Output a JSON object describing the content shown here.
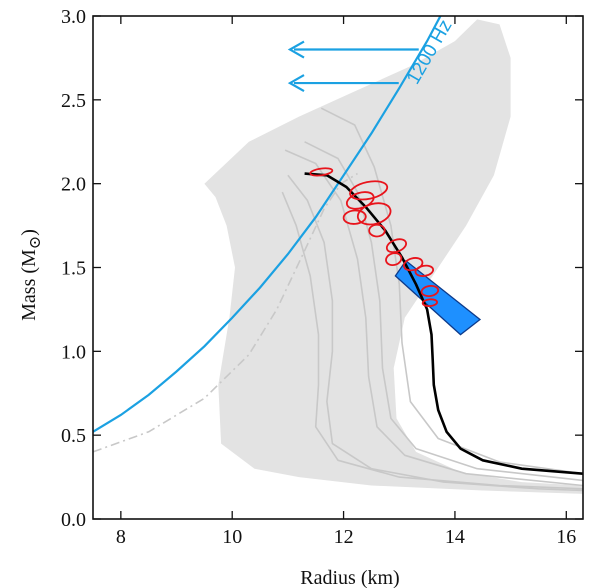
{
  "chart_data": {
    "type": "line",
    "xlabel": "Radius (km)",
    "ylabel": "Mass (M",
    "ylabel_symbol": "⊙",
    "ylabel_close": ")",
    "xlim": [
      7.5,
      16.3
    ],
    "ylim": [
      0.0,
      3.0
    ],
    "xticks": [
      8,
      10,
      12,
      14,
      16
    ],
    "xtick_labels": [
      "8",
      "10",
      "12",
      "14",
      "16"
    ],
    "yticks": [
      0.0,
      0.5,
      1.0,
      1.5,
      2.0,
      2.5,
      3.0
    ],
    "ytick_labels": [
      "0.0",
      "0.5",
      "1.0",
      "1.5",
      "2.0",
      "2.5",
      "3.0"
    ],
    "grid": false,
    "colors": {
      "spin_limit": "#1ba1e2",
      "constraint_band": "#1e90ff",
      "contours": "#e8141c",
      "eos": "#000000",
      "gray_band": "#e3e3e3",
      "gray_curves": "#c8c8c8"
    },
    "annotation": {
      "text": "1200 Hz",
      "arrows_y": [
        2.8,
        2.6
      ]
    },
    "gray_band": {
      "points": [
        [
          9.5,
          2.0
        ],
        [
          10.3,
          2.25
        ],
        [
          11.2,
          2.4
        ],
        [
          12.2,
          2.55
        ],
        [
          13.2,
          2.7
        ],
        [
          14.0,
          2.85
        ],
        [
          14.4,
          2.98
        ],
        [
          14.8,
          2.95
        ],
        [
          15.0,
          2.75
        ],
        [
          15.0,
          2.4
        ],
        [
          14.7,
          2.05
        ],
        [
          14.2,
          1.75
        ],
        [
          13.6,
          1.45
        ],
        [
          13.1,
          1.2
        ],
        [
          12.9,
          0.9
        ],
        [
          12.95,
          0.6
        ],
        [
          13.3,
          0.4
        ],
        [
          14.1,
          0.28
        ],
        [
          15.2,
          0.22
        ],
        [
          16.3,
          0.2
        ],
        [
          16.3,
          0.15
        ],
        [
          14.5,
          0.17
        ],
        [
          12.5,
          0.2
        ],
        [
          11.2,
          0.25
        ],
        [
          10.4,
          0.3
        ],
        [
          9.8,
          0.45
        ],
        [
          9.75,
          0.8
        ],
        [
          9.95,
          1.2
        ],
        [
          10.05,
          1.5
        ],
        [
          9.9,
          1.75
        ],
        [
          9.7,
          1.92
        ]
      ]
    },
    "spin_limit_curve": [
      [
        7.5,
        0.52
      ],
      [
        8.0,
        0.62
      ],
      [
        8.5,
        0.74
      ],
      [
        9.0,
        0.88
      ],
      [
        9.5,
        1.03
      ],
      [
        10.0,
        1.2
      ],
      [
        10.5,
        1.38
      ],
      [
        11.0,
        1.58
      ],
      [
        11.5,
        1.8
      ],
      [
        12.0,
        2.05
      ],
      [
        12.5,
        2.3
      ],
      [
        13.0,
        2.57
      ],
      [
        13.5,
        2.85
      ],
      [
        13.82,
        3.05
      ]
    ],
    "gray_dashdot_curve": [
      [
        7.5,
        0.4
      ],
      [
        8.5,
        0.52
      ],
      [
        9.5,
        0.72
      ],
      [
        10.3,
        0.98
      ],
      [
        10.8,
        1.25
      ],
      [
        11.3,
        1.6
      ],
      [
        11.65,
        1.85
      ],
      [
        11.95,
        2.0
      ],
      [
        12.25,
        2.06
      ]
    ],
    "gray_curves": [
      [
        [
          11.0,
          2.05
        ],
        [
          11.35,
          1.9
        ],
        [
          11.65,
          1.65
        ],
        [
          11.8,
          1.3
        ],
        [
          11.8,
          1.0
        ],
        [
          11.7,
          0.7
        ],
        [
          11.8,
          0.45
        ],
        [
          12.5,
          0.3
        ],
        [
          13.8,
          0.22
        ],
        [
          15.5,
          0.18
        ],
        [
          16.3,
          0.17
        ]
      ],
      [
        [
          10.95,
          2.2
        ],
        [
          11.5,
          2.12
        ],
        [
          11.95,
          1.9
        ],
        [
          12.25,
          1.55
        ],
        [
          12.4,
          1.2
        ],
        [
          12.45,
          0.85
        ],
        [
          12.6,
          0.55
        ],
        [
          13.1,
          0.38
        ],
        [
          14.2,
          0.27
        ],
        [
          16.3,
          0.2
        ]
      ],
      [
        [
          11.3,
          2.25
        ],
        [
          11.9,
          2.15
        ],
        [
          12.25,
          1.95
        ],
        [
          12.5,
          1.65
        ],
        [
          12.65,
          1.3
        ],
        [
          12.7,
          0.9
        ],
        [
          12.85,
          0.6
        ],
        [
          13.3,
          0.42
        ],
        [
          14.4,
          0.3
        ],
        [
          16.3,
          0.23
        ]
      ],
      [
        [
          11.6,
          2.45
        ],
        [
          12.2,
          2.35
        ],
        [
          12.55,
          2.1
        ],
        [
          12.85,
          1.75
        ],
        [
          13.0,
          1.4
        ],
        [
          13.05,
          1.05
        ],
        [
          13.2,
          0.7
        ],
        [
          13.7,
          0.48
        ],
        [
          14.8,
          0.34
        ],
        [
          16.3,
          0.27
        ]
      ],
      [
        [
          10.9,
          1.95
        ],
        [
          11.15,
          1.75
        ],
        [
          11.4,
          1.45
        ],
        [
          11.55,
          1.1
        ],
        [
          11.55,
          0.8
        ],
        [
          11.5,
          0.55
        ],
        [
          11.9,
          0.35
        ],
        [
          13.0,
          0.25
        ],
        [
          14.8,
          0.2
        ],
        [
          16.3,
          0.18
        ]
      ]
    ],
    "eos_curve": [
      [
        11.3,
        2.06
      ],
      [
        11.7,
        2.05
      ],
      [
        12.05,
        1.98
      ],
      [
        12.4,
        1.86
      ],
      [
        12.75,
        1.72
      ],
      [
        13.05,
        1.56
      ],
      [
        13.3,
        1.4
      ],
      [
        13.5,
        1.25
      ],
      [
        13.58,
        1.1
      ],
      [
        13.6,
        0.95
      ],
      [
        13.62,
        0.8
      ],
      [
        13.7,
        0.65
      ],
      [
        13.85,
        0.52
      ],
      [
        14.1,
        0.42
      ],
      [
        14.5,
        0.35
      ],
      [
        15.2,
        0.3
      ],
      [
        16.3,
        0.27
      ]
    ],
    "constraint_band": {
      "corners": [
        [
          12.93,
          1.45
        ],
        [
          13.12,
          1.54
        ],
        [
          14.45,
          1.19
        ],
        [
          14.1,
          1.1
        ]
      ]
    },
    "contours": [
      {
        "cx": 11.6,
        "cy": 2.07,
        "rx": 0.2,
        "ry": 0.02,
        "rot": -8
      },
      {
        "cx": 12.45,
        "cy": 1.96,
        "rx": 0.34,
        "ry": 0.05,
        "rot": -12
      },
      {
        "cx": 12.3,
        "cy": 1.9,
        "rx": 0.25,
        "ry": 0.045,
        "rot": -18
      },
      {
        "cx": 12.55,
        "cy": 1.82,
        "rx": 0.3,
        "ry": 0.06,
        "rot": -15
      },
      {
        "cx": 12.2,
        "cy": 1.8,
        "rx": 0.2,
        "ry": 0.04,
        "rot": -5
      },
      {
        "cx": 12.6,
        "cy": 1.72,
        "rx": 0.14,
        "ry": 0.035,
        "rot": 0
      },
      {
        "cx": 12.95,
        "cy": 1.63,
        "rx": 0.18,
        "ry": 0.035,
        "rot": -20
      },
      {
        "cx": 12.9,
        "cy": 1.55,
        "rx": 0.14,
        "ry": 0.035,
        "rot": -15
      },
      {
        "cx": 13.25,
        "cy": 1.52,
        "rx": 0.17,
        "ry": 0.035,
        "rot": -15
      },
      {
        "cx": 13.45,
        "cy": 1.48,
        "rx": 0.16,
        "ry": 0.03,
        "rot": -10
      },
      {
        "cx": 13.55,
        "cy": 1.36,
        "rx": 0.15,
        "ry": 0.03,
        "rot": -8
      },
      {
        "cx": 13.55,
        "cy": 1.29,
        "rx": 0.13,
        "ry": 0.02,
        "rot": -5
      }
    ]
  }
}
